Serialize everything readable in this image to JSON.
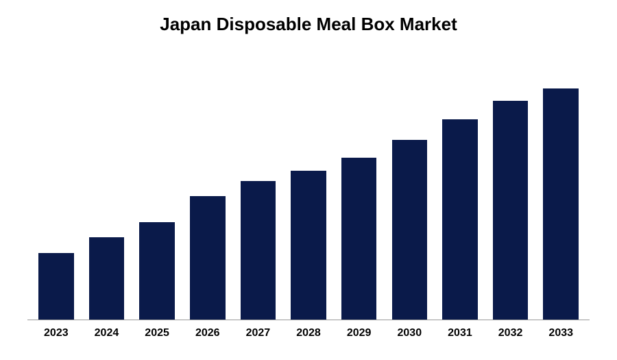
{
  "chart": {
    "type": "bar",
    "title": "Japan Disposable Meal Box Market",
    "title_fontsize": 26,
    "title_color": "#000000",
    "categories": [
      "2023",
      "2024",
      "2025",
      "2026",
      "2027",
      "2028",
      "2029",
      "2030",
      "2031",
      "2032",
      "2033"
    ],
    "values": [
      26,
      32,
      38,
      48,
      54,
      58,
      63,
      70,
      78,
      85,
      90
    ],
    "bar_color": "#0a1a4a",
    "background_color": "#ffffff",
    "axis_color": "#999999",
    "label_fontsize": 16,
    "label_fontweight": "bold",
    "label_color": "#000000",
    "bar_width": 0.7,
    "ylim": [
      0,
      100
    ]
  }
}
